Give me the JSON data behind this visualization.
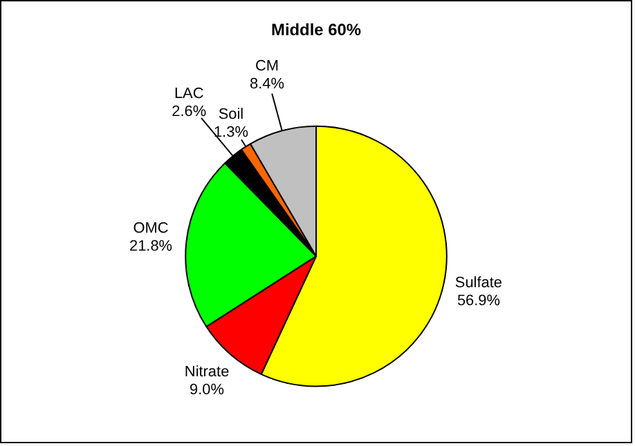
{
  "chart_data": {
    "type": "pie",
    "title": "Middle 60%",
    "categories": [
      "Sulfate",
      "Nitrate",
      "OMC",
      "LAC",
      "Soil",
      "CM"
    ],
    "values": [
      56.9,
      9.0,
      21.8,
      2.6,
      1.3,
      8.4
    ],
    "value_labels": [
      "56.9%",
      "9.0%",
      "21.8%",
      "2.6%",
      "1.3%",
      "8.4%"
    ],
    "colors": [
      "#ffff00",
      "#ff0000",
      "#00ff00",
      "#000000",
      "#ff6600",
      "#c0c0c0"
    ],
    "legend": false
  }
}
